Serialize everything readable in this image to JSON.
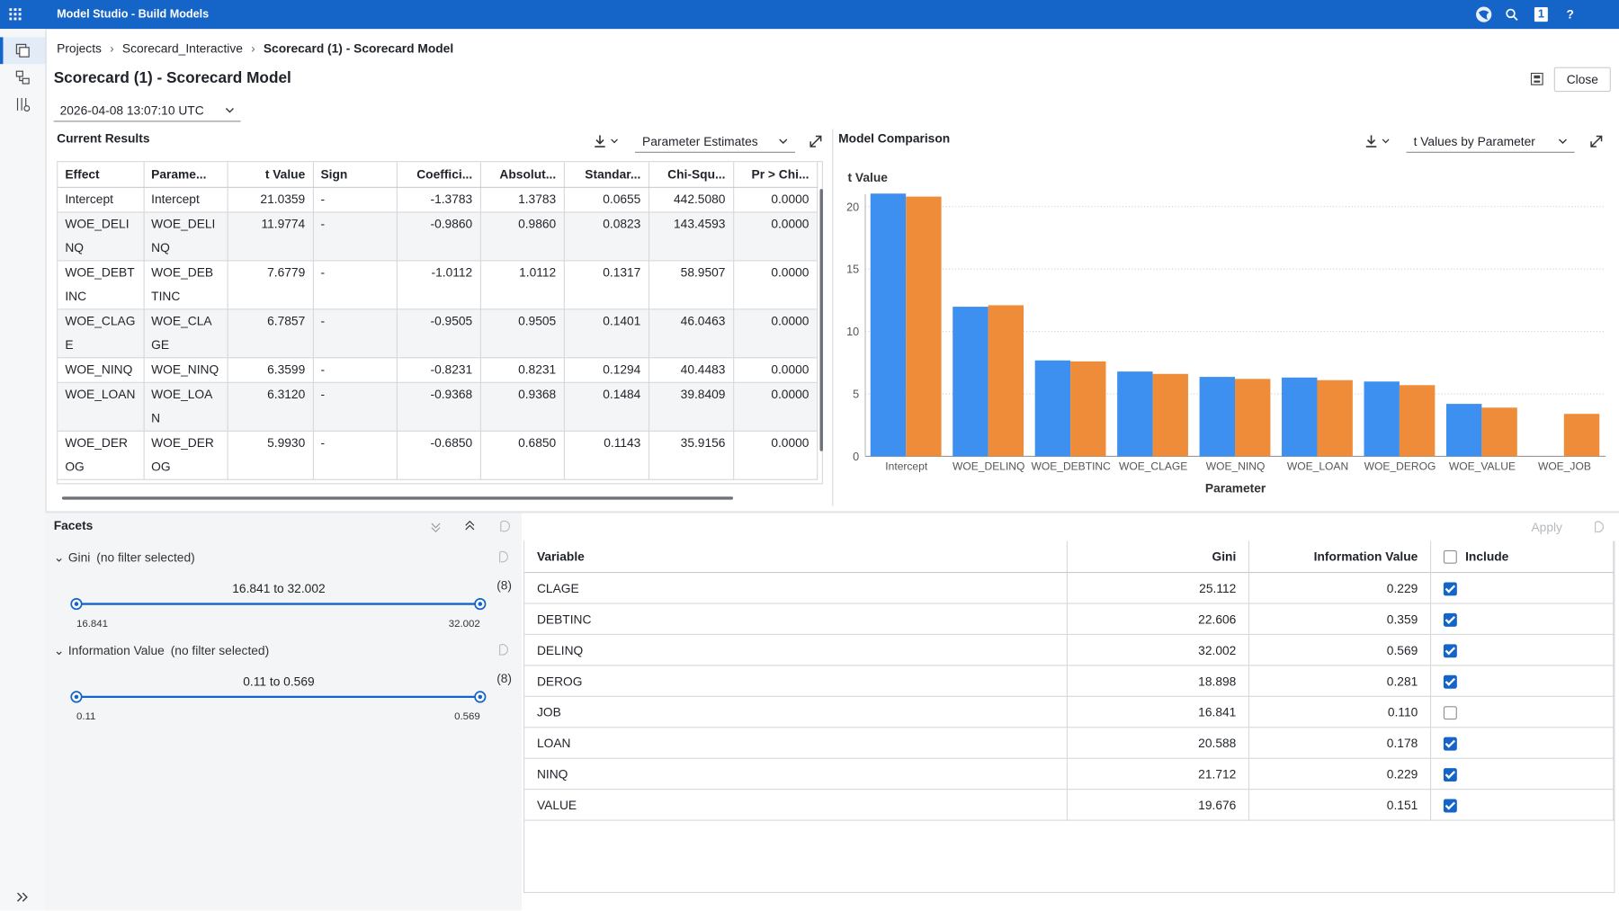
{
  "app": {
    "title": "Model Studio - Build Models",
    "badge": "1",
    "help": "?"
  },
  "breadcrumb": [
    "Projects",
    "Scorecard_Interactive",
    "Scorecard (1) - Scorecard Model"
  ],
  "page": {
    "title": "Scorecard (1) - Scorecard Model",
    "timestamp": "2026-04-08 13:07:10 UTC",
    "close": "Close"
  },
  "current_results": {
    "title": "Current Results",
    "view": "Parameter Estimates",
    "columns": [
      "Effect",
      "Parame...",
      "t Value",
      "Sign",
      "Coeffici...",
      "Absolut...",
      "Standar...",
      "Chi-Squ...",
      "Pr > Chi..."
    ],
    "rows": [
      [
        "Intercept",
        "Intercept",
        "21.0359",
        "-",
        "-1.3783",
        "1.3783",
        "0.0655",
        "442.5080",
        "0.0000"
      ],
      [
        "WOE_DELINQ",
        "WOE_DELINQ",
        "11.9774",
        "-",
        "-0.9860",
        "0.9860",
        "0.0823",
        "143.4593",
        "0.0000"
      ],
      [
        "WOE_DEBTINC",
        "WOE_DEBTINC",
        "7.6779",
        "-",
        "-1.0112",
        "1.0112",
        "0.1317",
        "58.9507",
        "0.0000"
      ],
      [
        "WOE_CLAGE",
        "WOE_CLAGE",
        "6.7857",
        "-",
        "-0.9505",
        "0.9505",
        "0.1401",
        "46.0463",
        "0.0000"
      ],
      [
        "WOE_NINQ",
        "WOE_NINQ",
        "6.3599",
        "-",
        "-0.8231",
        "0.8231",
        "0.1294",
        "40.4483",
        "0.0000"
      ],
      [
        "WOE_LOAN",
        "WOE_LOAN",
        "6.3120",
        "-",
        "-0.9368",
        "0.9368",
        "0.1484",
        "39.8409",
        "0.0000"
      ],
      [
        "WOE_DEROG",
        "WOE_DEROG",
        "5.9930",
        "-",
        "-0.6850",
        "0.6850",
        "0.1143",
        "35.9156",
        "0.0000"
      ]
    ]
  },
  "model_comparison": {
    "title": "Model Comparison",
    "view": "t Values by Parameter",
    "chart": {
      "type": "bar",
      "y_label": "t Value",
      "x_label": "Parameter",
      "categories": [
        "Intercept",
        "WOE_DELINQ",
        "WOE_DEBTINC",
        "WOE_CLAGE",
        "WOE_NINQ",
        "WOE_LOAN",
        "WOE_DEROG",
        "WOE_VALUE",
        "WOE_JOB"
      ],
      "series": [
        {
          "color": "#3d8ff0",
          "values": [
            21.04,
            11.98,
            7.68,
            6.79,
            6.36,
            6.31,
            5.99,
            4.2,
            null
          ]
        },
        {
          "color": "#ef8c3a",
          "values": [
            20.8,
            12.1,
            7.6,
            6.6,
            6.2,
            6.1,
            5.7,
            3.9,
            3.4
          ]
        }
      ],
      "ylim": [
        0,
        21
      ],
      "yticks": [
        0,
        5,
        10,
        15,
        20
      ],
      "grid": true
    }
  },
  "facets": {
    "title": "Facets",
    "filters": [
      {
        "label": "Gini",
        "status": "(no filter selected)",
        "range": "16.841 to 32.002",
        "count": "(8)",
        "min": "16.841",
        "max": "32.002"
      },
      {
        "label": "Information Value",
        "status": "(no filter selected)",
        "range": "0.11 to 0.569",
        "count": "(8)",
        "min": "0.11",
        "max": "0.569"
      }
    ]
  },
  "variables": {
    "apply": "Apply",
    "columns": [
      "Variable",
      "Gini",
      "Information Value",
      "Include"
    ],
    "rows": [
      {
        "cells": [
          "CLAGE",
          "25.112",
          "0.229"
        ],
        "include": true
      },
      {
        "cells": [
          "DEBTINC",
          "22.606",
          "0.359"
        ],
        "include": true
      },
      {
        "cells": [
          "DELINQ",
          "32.002",
          "0.569"
        ],
        "include": true
      },
      {
        "cells": [
          "DEROG",
          "18.898",
          "0.281"
        ],
        "include": true
      },
      {
        "cells": [
          "JOB",
          "16.841",
          "0.110"
        ],
        "include": false
      },
      {
        "cells": [
          "LOAN",
          "20.588",
          "0.178"
        ],
        "include": true
      },
      {
        "cells": [
          "NINQ",
          "21.712",
          "0.229"
        ],
        "include": true
      },
      {
        "cells": [
          "VALUE",
          "19.676",
          "0.151"
        ],
        "include": true
      }
    ]
  }
}
